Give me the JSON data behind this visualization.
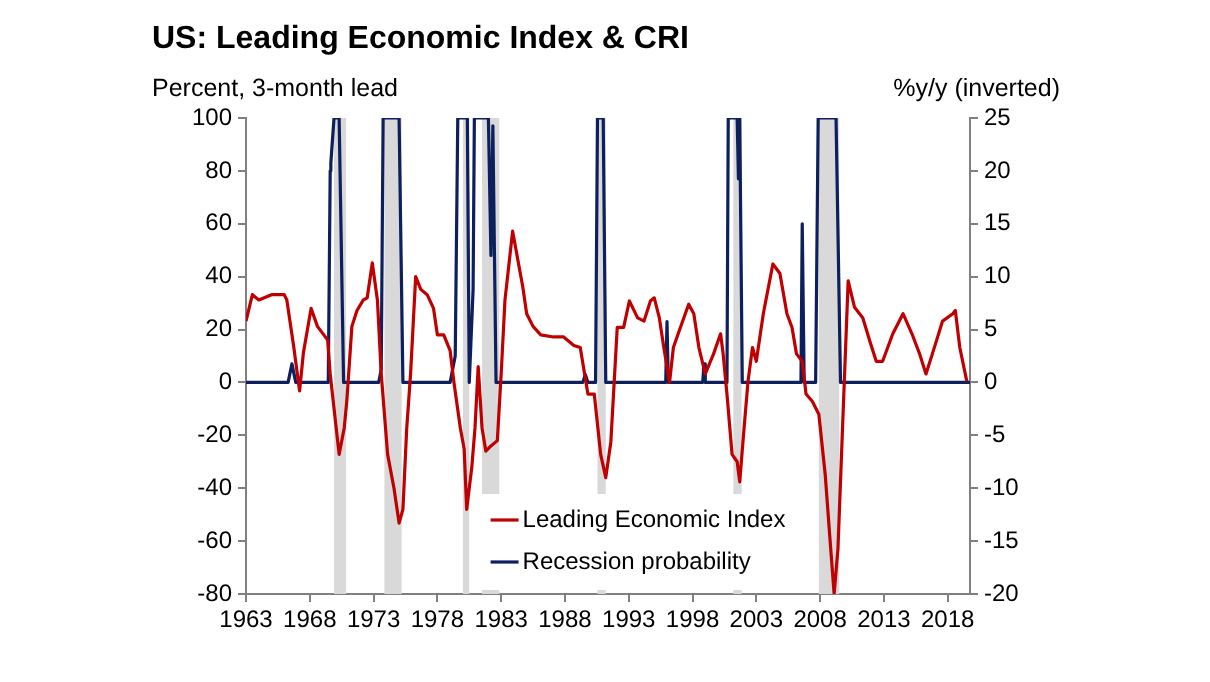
{
  "chart_data": {
    "type": "line",
    "title": "US: Leading Economic Index & CRI",
    "ylabel": "Percent, 3-month lead",
    "y2label": "%y/y (inverted)",
    "xlim": [
      1963,
      2019.75
    ],
    "xticks": [
      1963,
      1968,
      1973,
      1978,
      1983,
      1988,
      1993,
      1998,
      2003,
      2008,
      2013,
      2018
    ],
    "ylim": [
      -80,
      100
    ],
    "yticks": [
      -80,
      -60,
      -40,
      -20,
      0,
      20,
      40,
      60,
      80,
      100
    ],
    "y2lim": [
      -20,
      25
    ],
    "y2ticks": [
      -20,
      -15,
      -10,
      -5,
      0,
      5,
      10,
      15,
      20,
      25
    ],
    "grid": false,
    "legend": "bottom",
    "marker": "none",
    "line_style": "solid",
    "bands": [
      {
        "axis": "x",
        "from": 1969.9,
        "to": 1970.85,
        "label": null,
        "color": "#d9d9d9"
      },
      {
        "axis": "x",
        "from": 1973.85,
        "to": 1975.2,
        "label": null,
        "color": "#d9d9d9"
      },
      {
        "axis": "x",
        "from": 1980.0,
        "to": 1980.5,
        "label": null,
        "color": "#d9d9d9"
      },
      {
        "axis": "x",
        "from": 1981.5,
        "to": 1982.85,
        "label": null,
        "color": "#d9d9d9"
      },
      {
        "axis": "x",
        "from": 1990.55,
        "to": 1991.2,
        "label": null,
        "color": "#d9d9d9"
      },
      {
        "axis": "x",
        "from": 2001.2,
        "to": 2001.85,
        "label": null,
        "color": "#d9d9d9"
      },
      {
        "axis": "x",
        "from": 2007.9,
        "to": 2009.5,
        "label": null,
        "color": "#d9d9d9"
      }
    ],
    "series": [
      {
        "name": "Leading Economic Index",
        "color": "#c00000",
        "axis": "y2",
        "x": [
          1963.0,
          1963.5,
          1964.0,
          1965.0,
          1966.0,
          1966.2,
          1966.75,
          1967.2,
          1967.5,
          1968.1,
          1968.6,
          1969.1,
          1969.4,
          1969.6,
          1970.3,
          1970.7,
          1970.9,
          1971.3,
          1971.7,
          1972.2,
          1972.5,
          1972.9,
          1973.3,
          1973.6,
          1974.1,
          1974.6,
          1975.0,
          1975.3,
          1975.6,
          1975.9,
          1976.3,
          1976.7,
          1977.2,
          1977.7,
          1978.0,
          1978.5,
          1979.0,
          1979.3,
          1979.8,
          1980.1,
          1980.3,
          1980.7,
          1980.95,
          1981.2,
          1981.5,
          1981.8,
          1982.2,
          1982.7,
          1983.0,
          1983.3,
          1983.9,
          1984.2,
          1984.7,
          1985.0,
          1985.5,
          1986.1,
          1987.1,
          1987.9,
          1988.7,
          1989.2,
          1989.8,
          1990.3,
          1990.8,
          1991.2,
          1991.6,
          1992.1,
          1992.6,
          1993.05,
          1993.7,
          1994.2,
          1994.7,
          1995.0,
          1995.4,
          1995.75,
          1996.2,
          1996.5,
          1997.05,
          1997.7,
          1998.1,
          1998.5,
          1999.0,
          1999.65,
          2000.2,
          2000.4,
          2000.7,
          2001.1,
          2001.5,
          2001.7,
          2002.0,
          2002.35,
          2002.7,
          2003.0,
          2003.55,
          2004.3,
          2004.85,
          2005.4,
          2005.8,
          2006.15,
          2006.6,
          2006.9,
          2007.4,
          2007.9,
          2008.4,
          2008.75,
          2009.1,
          2009.4,
          2009.8,
          2010.2,
          2010.7,
          2011.35,
          2011.9,
          2012.4,
          2012.9,
          2013.7,
          2014.5,
          2015.2,
          2015.8,
          2016.3,
          2016.8,
          2017.6,
          2018.4,
          2018.6,
          2018.95,
          2019.5
        ],
        "values": [
          5.8,
          8.3,
          7.8,
          8.3,
          8.3,
          7.8,
          3.3,
          -0.8,
          2.8,
          7,
          5.3,
          4.5,
          4,
          0.8,
          -6.8,
          -4.3,
          -1.8,
          5.3,
          6.8,
          7.8,
          8,
          11.3,
          7.8,
          0.8,
          -6.8,
          -10,
          -13.3,
          -12,
          -4.3,
          0.8,
          10,
          8.8,
          8.3,
          7,
          4.5,
          4.5,
          3,
          0,
          -4.3,
          -6.3,
          -12,
          -8,
          -4.3,
          1.5,
          -4.3,
          -6.5,
          -6,
          -5.5,
          0.8,
          7.8,
          14.3,
          12.3,
          9,
          6.5,
          5.3,
          4.5,
          4.3,
          4.3,
          3.5,
          3.3,
          -1.1,
          -1.1,
          -6.8,
          -9,
          -5.6,
          5.2,
          5.2,
          7.7,
          6.1,
          5.8,
          7.7,
          8,
          6.1,
          3.3,
          0,
          3.3,
          5.2,
          7.4,
          6.5,
          3.3,
          0.8,
          2.7,
          4.6,
          2.7,
          -1.1,
          -6.8,
          -7.5,
          -9.4,
          -4.9,
          0.1,
          3.3,
          2,
          6.5,
          11.2,
          10.3,
          6.5,
          5.2,
          2.7,
          2,
          -1.1,
          -1.8,
          -3,
          -8.7,
          -14.4,
          -20,
          -15.7,
          -3,
          9.6,
          7.1,
          6.1,
          3.9,
          2,
          2,
          4.6,
          6.5,
          4.6,
          2.7,
          0.8,
          2.7,
          5.8,
          6.5,
          6.8,
          3.3,
          0.1
        ]
      },
      {
        "name": "Recession probability",
        "color": "#0d1f5c",
        "x": [
          1963,
          1966.3,
          1966.6,
          1966.9,
          1969.45,
          1969.6,
          1969.65,
          1969.9,
          1970.3,
          1970.65,
          1973.4,
          1973.6,
          1973.75,
          1975.0,
          1975.3,
          1979.0,
          1979.4,
          1979.6,
          1980.35,
          1980.5,
          1980.8,
          1980.9,
          1981.5,
          1982.0,
          1982.2,
          1982.35,
          1982.6,
          1989.4,
          1989.6,
          1989.8,
          1990.4,
          1990.55,
          1991.0,
          1991.2,
          1995.9,
          1996.0,
          1996.1,
          1998.8,
          1998.9,
          1999.0,
          2000.7,
          2000.8,
          2001.5,
          2001.6,
          2001.7,
          2001.9,
          2006.5,
          2006.6,
          2006.75,
          2007.65,
          2007.85,
          2009.25,
          2009.6,
          2019.75
        ],
        "values": [
          0,
          0,
          7,
          0,
          0,
          80,
          83,
          100,
          100,
          0,
          0,
          5,
          100,
          100,
          0,
          0,
          10,
          100,
          100,
          0,
          35,
          100,
          100,
          100,
          48,
          97,
          0,
          0,
          3,
          0,
          0,
          100,
          100,
          0,
          0,
          23,
          0,
          0,
          7,
          0,
          0,
          100,
          100,
          77,
          100,
          0,
          0,
          60,
          0,
          0,
          100,
          100,
          0,
          0
        ]
      }
    ]
  }
}
